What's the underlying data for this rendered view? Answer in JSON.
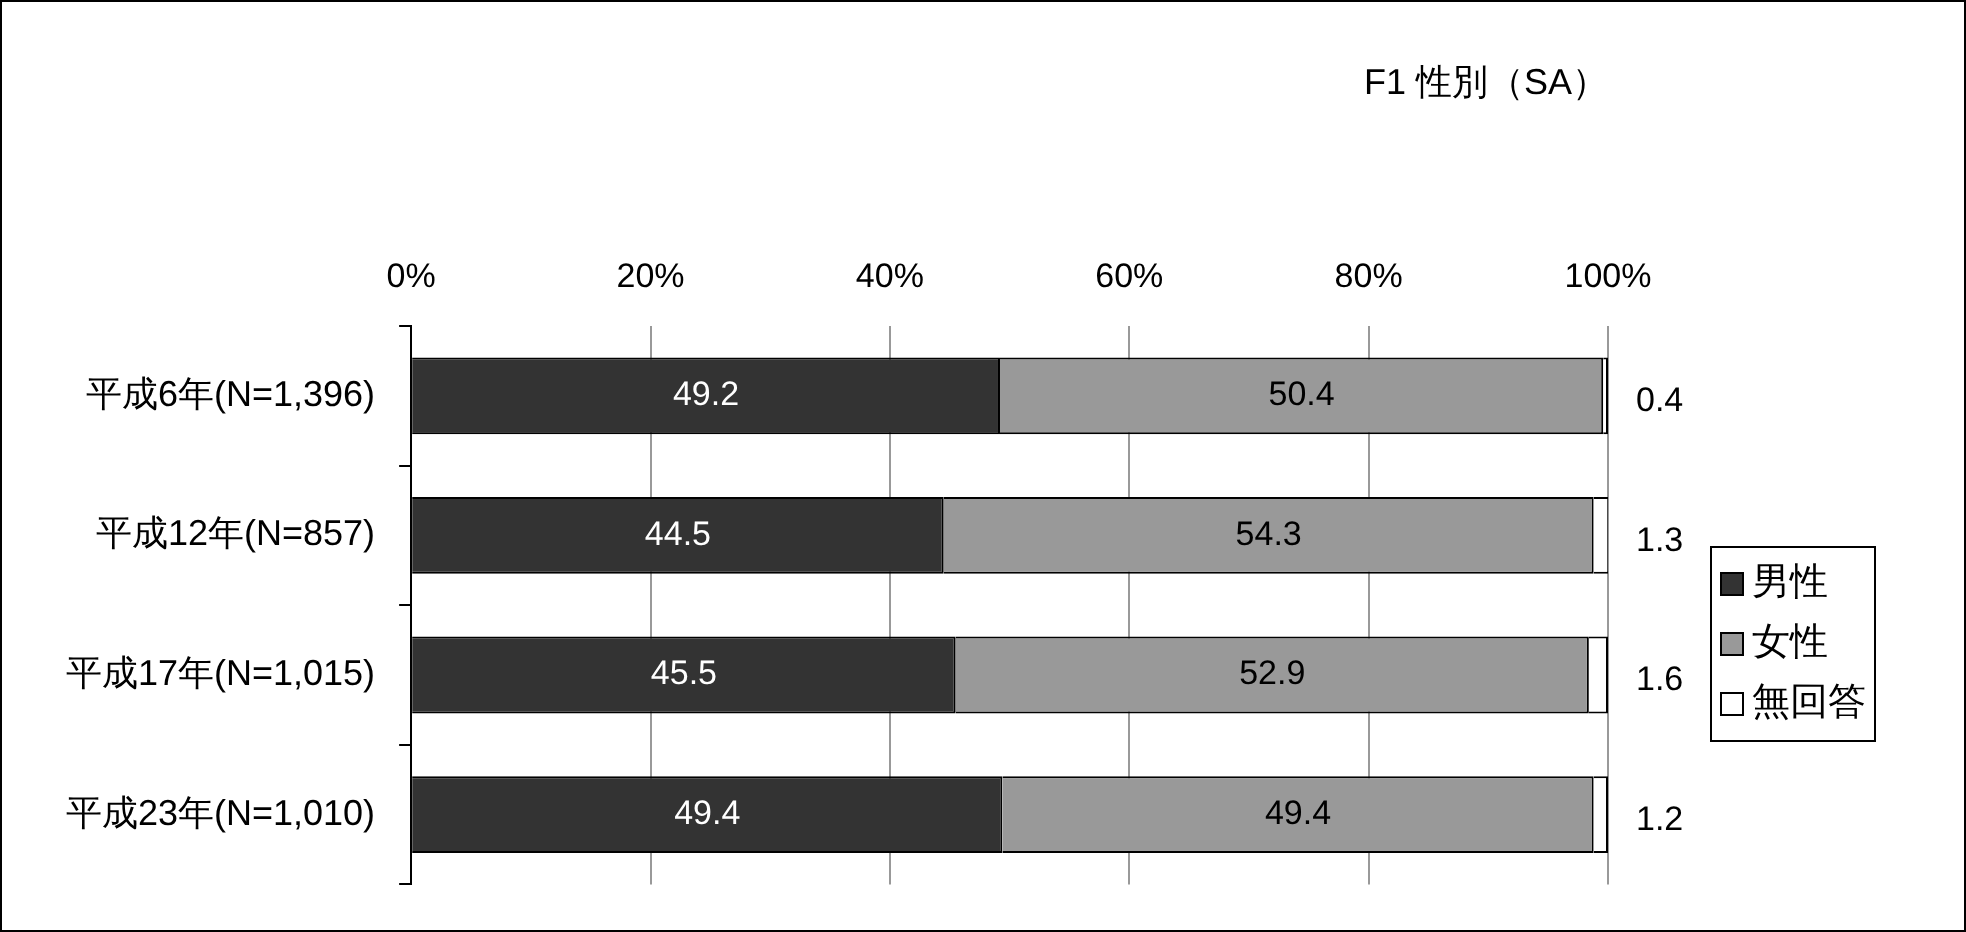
{
  "chart_data": {
    "type": "bar",
    "orientation": "horizontal",
    "stacked": true,
    "title": "F1 性別（SA）",
    "categories": [
      "平成6年(N=1,396)",
      "平成12年(N=857)",
      "平成17年(N=1,015)",
      "平成23年(N=1,010)"
    ],
    "series": [
      {
        "name": "男性",
        "color": "#333333",
        "values": [
          49.2,
          44.5,
          45.5,
          49.4
        ]
      },
      {
        "name": "女性",
        "color": "#999999",
        "values": [
          50.4,
          54.3,
          52.9,
          49.4
        ]
      },
      {
        "name": "無回答",
        "color": "#ffffff",
        "values": [
          0.4,
          1.3,
          1.6,
          1.2
        ]
      }
    ],
    "xlim": [
      0,
      100
    ],
    "xticks": [
      {
        "value": 0,
        "label": "0%"
      },
      {
        "value": 20,
        "label": "20%"
      },
      {
        "value": 40,
        "label": "40%"
      },
      {
        "value": 60,
        "label": "60%"
      },
      {
        "value": 80,
        "label": "80%"
      },
      {
        "value": 100,
        "label": "100%"
      }
    ],
    "grid": "x",
    "legend": "right",
    "data_labels": true
  }
}
